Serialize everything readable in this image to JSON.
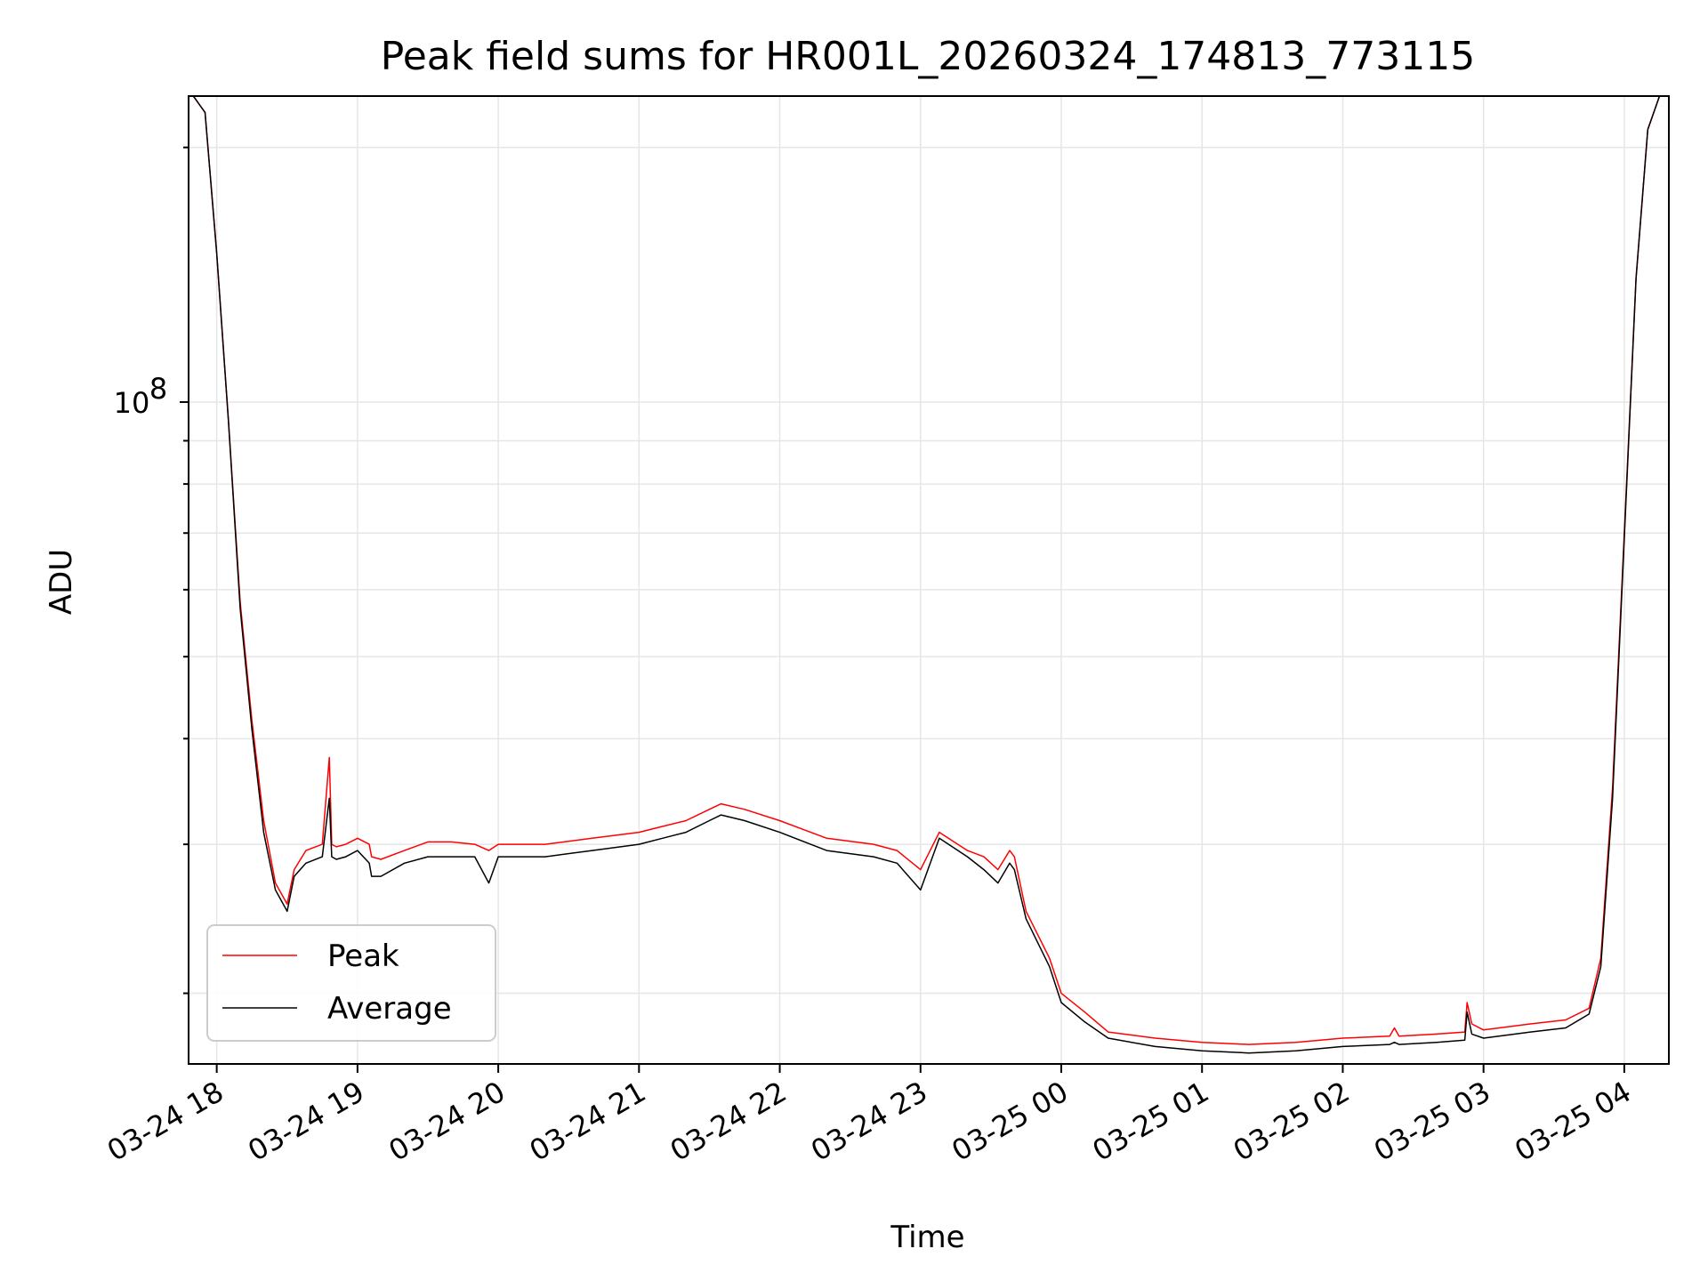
{
  "chart_data": {
    "type": "line",
    "title": "Peak field sums for HR001L_20260324_174813_773115",
    "xlabel": "Time",
    "ylabel": "ADU",
    "y_scale": "log",
    "ylim": [
      16500000,
      230000000
    ],
    "y_tick_labels": [
      {
        "value": 100000000,
        "base": "10",
        "exp": "8"
      }
    ],
    "xlim": [
      "2026-03-24 17:48",
      "2026-03-25 04:19"
    ],
    "x_tick_labels": [
      "03-24 18",
      "03-24 19",
      "03-24 20",
      "03-24 21",
      "03-24 22",
      "03-24 23",
      "03-25 00",
      "03-25 01",
      "03-25 02",
      "03-25 03",
      "03-25 04"
    ],
    "x_ticks": [
      "2026-03-24 18:00",
      "2026-03-24 19:00",
      "2026-03-24 20:00",
      "2026-03-24 21:00",
      "2026-03-24 22:00",
      "2026-03-24 23:00",
      "2026-03-25 00:00",
      "2026-03-25 01:00",
      "2026-03-25 02:00",
      "2026-03-25 03:00",
      "2026-03-25 04:00"
    ],
    "grid": true,
    "legend": "lower-left",
    "series": [
      {
        "name": "Peak",
        "color": "#ff0000",
        "x": [
          "2026-03-24 17:50",
          "2026-03-24 17:55",
          "2026-03-24 18:00",
          "2026-03-24 18:05",
          "2026-03-24 18:10",
          "2026-03-24 18:15",
          "2026-03-24 18:20",
          "2026-03-24 18:25",
          "2026-03-24 18:30",
          "2026-03-24 18:33",
          "2026-03-24 18:38",
          "2026-03-24 18:45",
          "2026-03-24 18:48",
          "2026-03-24 18:49",
          "2026-03-24 18:51",
          "2026-03-24 18:55",
          "2026-03-24 19:00",
          "2026-03-24 19:05",
          "2026-03-24 19:06",
          "2026-03-24 19:10",
          "2026-03-24 19:20",
          "2026-03-24 19:30",
          "2026-03-24 19:40",
          "2026-03-24 19:50",
          "2026-03-24 19:56",
          "2026-03-24 20:00",
          "2026-03-24 20:20",
          "2026-03-24 20:40",
          "2026-03-24 21:00",
          "2026-03-24 21:10",
          "2026-03-24 21:20",
          "2026-03-24 21:30",
          "2026-03-24 21:35",
          "2026-03-24 21:45",
          "2026-03-24 22:00",
          "2026-03-24 22:20",
          "2026-03-24 22:40",
          "2026-03-24 22:50",
          "2026-03-24 23:00",
          "2026-03-24 23:08",
          "2026-03-24 23:20",
          "2026-03-24 23:27",
          "2026-03-24 23:33",
          "2026-03-24 23:38",
          "2026-03-24 23:40",
          "2026-03-24 23:45",
          "2026-03-24 23:55",
          "2026-03-25 00:00",
          "2026-03-25 00:10",
          "2026-03-25 00:20",
          "2026-03-25 00:40",
          "2026-03-25 01:00",
          "2026-03-25 01:20",
          "2026-03-25 01:40",
          "2026-03-25 02:00",
          "2026-03-25 02:20",
          "2026-03-25 02:22",
          "2026-03-25 02:24",
          "2026-03-25 02:40",
          "2026-03-25 02:52",
          "2026-03-25 02:53",
          "2026-03-25 02:55",
          "2026-03-25 03:00",
          "2026-03-25 03:20",
          "2026-03-25 03:35",
          "2026-03-25 03:45",
          "2026-03-25 03:50",
          "2026-03-25 03:55",
          "2026-03-25 04:00",
          "2026-03-25 04:05",
          "2026-03-25 04:10",
          "2026-03-25 04:15"
        ],
        "y": [
          230000000,
          220000000,
          150000000,
          95000000,
          58000000,
          42000000,
          32000000,
          27000000,
          25500000,
          28000000,
          29500000,
          30000000,
          38000000,
          30000000,
          29800000,
          30000000,
          30500000,
          30000000,
          29000000,
          28800000,
          29500000,
          30200000,
          30200000,
          30000000,
          29500000,
          30000000,
          30000000,
          30500000,
          31000000,
          31500000,
          32000000,
          33000000,
          33500000,
          33000000,
          32000000,
          30500000,
          30000000,
          29500000,
          28000000,
          31000000,
          29500000,
          29000000,
          28000000,
          29500000,
          29000000,
          25000000,
          22000000,
          20000000,
          19000000,
          18000000,
          17700000,
          17500000,
          17400000,
          17500000,
          17700000,
          17800000,
          18200000,
          17800000,
          17900000,
          18000000,
          19500000,
          18400000,
          18100000,
          18400000,
          18600000,
          19200000,
          22000000,
          35000000,
          70000000,
          140000000,
          210000000,
          230000000
        ]
      },
      {
        "name": "Average",
        "color": "#000000",
        "x": [
          "2026-03-24 17:50",
          "2026-03-24 17:55",
          "2026-03-24 18:00",
          "2026-03-24 18:05",
          "2026-03-24 18:10",
          "2026-03-24 18:15",
          "2026-03-24 18:20",
          "2026-03-24 18:25",
          "2026-03-24 18:30",
          "2026-03-24 18:33",
          "2026-03-24 18:38",
          "2026-03-24 18:45",
          "2026-03-24 18:48",
          "2026-03-24 18:49",
          "2026-03-24 18:51",
          "2026-03-24 18:55",
          "2026-03-24 19:00",
          "2026-03-24 19:05",
          "2026-03-24 19:06",
          "2026-03-24 19:10",
          "2026-03-24 19:20",
          "2026-03-24 19:30",
          "2026-03-24 19:40",
          "2026-03-24 19:50",
          "2026-03-24 19:56",
          "2026-03-24 20:00",
          "2026-03-24 20:20",
          "2026-03-24 20:40",
          "2026-03-24 21:00",
          "2026-03-24 21:10",
          "2026-03-24 21:20",
          "2026-03-24 21:30",
          "2026-03-24 21:35",
          "2026-03-24 21:45",
          "2026-03-24 22:00",
          "2026-03-24 22:20",
          "2026-03-24 22:40",
          "2026-03-24 22:50",
          "2026-03-24 23:00",
          "2026-03-24 23:08",
          "2026-03-24 23:20",
          "2026-03-24 23:27",
          "2026-03-24 23:33",
          "2026-03-24 23:38",
          "2026-03-24 23:40",
          "2026-03-24 23:45",
          "2026-03-24 23:55",
          "2026-03-25 00:00",
          "2026-03-25 00:10",
          "2026-03-25 00:20",
          "2026-03-25 00:40",
          "2026-03-25 01:00",
          "2026-03-25 01:20",
          "2026-03-25 01:40",
          "2026-03-25 02:00",
          "2026-03-25 02:20",
          "2026-03-25 02:22",
          "2026-03-25 02:24",
          "2026-03-25 02:40",
          "2026-03-25 02:52",
          "2026-03-25 02:53",
          "2026-03-25 02:55",
          "2026-03-25 03:00",
          "2026-03-25 03:20",
          "2026-03-25 03:35",
          "2026-03-25 03:45",
          "2026-03-25 03:50",
          "2026-03-25 03:55",
          "2026-03-25 04:00",
          "2026-03-25 04:05",
          "2026-03-25 04:10",
          "2026-03-25 04:15"
        ],
        "y": [
          230000000,
          220000000,
          150000000,
          95000000,
          57000000,
          41000000,
          31000000,
          26500000,
          25000000,
          27500000,
          28500000,
          29000000,
          34000000,
          29000000,
          28800000,
          29000000,
          29500000,
          28500000,
          27500000,
          27500000,
          28500000,
          29000000,
          29000000,
          29000000,
          27000000,
          29000000,
          29000000,
          29500000,
          30000000,
          30500000,
          31000000,
          32000000,
          32500000,
          32000000,
          31000000,
          29500000,
          29000000,
          28500000,
          26500000,
          30500000,
          29000000,
          28000000,
          27000000,
          28500000,
          28000000,
          24500000,
          21500000,
          19500000,
          18500000,
          17700000,
          17300000,
          17100000,
          17000000,
          17100000,
          17300000,
          17400000,
          17500000,
          17400000,
          17500000,
          17600000,
          19000000,
          17900000,
          17700000,
          18000000,
          18200000,
          18900000,
          21500000,
          34000000,
          69000000,
          140000000,
          210000000,
          230000000
        ]
      }
    ]
  }
}
